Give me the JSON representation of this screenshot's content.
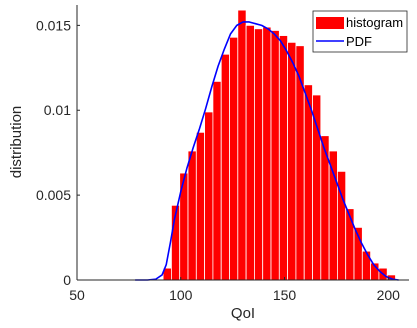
{
  "chart_data": {
    "type": "bar",
    "xlabel": "QoI",
    "ylabel": "distribution",
    "xlim": [
      50,
      210
    ],
    "ylim": [
      0,
      0.0162
    ],
    "x_ticks": [
      50,
      100,
      150,
      200
    ],
    "y_ticks": [
      0,
      0.005,
      0.01,
      0.015
    ],
    "x_tick_labels": [
      "50",
      "100",
      "150",
      "200"
    ],
    "y_tick_labels": [
      "0",
      "0.005",
      "0.01",
      "0.015"
    ],
    "grid": false,
    "legend": {
      "placement": "top-right",
      "entries": [
        "histogram",
        "PDF"
      ]
    },
    "series": [
      {
        "name": "histogram",
        "kind": "histogram",
        "color": "#ff0000",
        "bins": [
          {
            "x0": 91.5,
            "x1": 95.5,
            "value": 0.0007
          },
          {
            "x0": 95.5,
            "x1": 99.5,
            "value": 0.0044
          },
          {
            "x0": 99.5,
            "x1": 103.5,
            "value": 0.0063
          },
          {
            "x0": 103.5,
            "x1": 107.5,
            "value": 0.0076
          },
          {
            "x0": 107.5,
            "x1": 111.5,
            "value": 0.0087
          },
          {
            "x0": 111.5,
            "x1": 115.5,
            "value": 0.0099
          },
          {
            "x0": 115.5,
            "x1": 119.5,
            "value": 0.0117
          },
          {
            "x0": 119.5,
            "x1": 123.5,
            "value": 0.0133
          },
          {
            "x0": 123.5,
            "x1": 127.5,
            "value": 0.0143
          },
          {
            "x0": 127.5,
            "x1": 131.5,
            "value": 0.0159
          },
          {
            "x0": 131.5,
            "x1": 135.5,
            "value": 0.015
          },
          {
            "x0": 135.5,
            "x1": 139.5,
            "value": 0.0148
          },
          {
            "x0": 139.5,
            "x1": 143.5,
            "value": 0.0149
          },
          {
            "x0": 143.5,
            "x1": 147.5,
            "value": 0.0147
          },
          {
            "x0": 147.5,
            "x1": 151.5,
            "value": 0.0144
          },
          {
            "x0": 151.5,
            "x1": 155.5,
            "value": 0.014
          },
          {
            "x0": 155.5,
            "x1": 159.5,
            "value": 0.0138
          },
          {
            "x0": 159.5,
            "x1": 163.5,
            "value": 0.0115
          },
          {
            "x0": 163.5,
            "x1": 167.5,
            "value": 0.0109
          },
          {
            "x0": 167.5,
            "x1": 171.5,
            "value": 0.0085
          },
          {
            "x0": 171.5,
            "x1": 175.5,
            "value": 0.0076
          },
          {
            "x0": 175.5,
            "x1": 179.5,
            "value": 0.0064
          },
          {
            "x0": 179.5,
            "x1": 183.5,
            "value": 0.0042
          },
          {
            "x0": 183.5,
            "x1": 187.5,
            "value": 0.0031
          },
          {
            "x0": 187.5,
            "x1": 191.5,
            "value": 0.0017
          },
          {
            "x0": 191.5,
            "x1": 195.5,
            "value": 0.001
          },
          {
            "x0": 195.5,
            "x1": 199.5,
            "value": 0.0007
          },
          {
            "x0": 199.5,
            "x1": 203.5,
            "value": 0.0003
          }
        ]
      },
      {
        "name": "PDF",
        "kind": "line",
        "color": "#0000ff",
        "x": [
          78,
          84,
          88,
          91,
          93,
          95,
          97,
          100,
          103,
          106,
          109,
          112,
          115,
          118,
          121,
          124,
          127,
          130,
          133,
          136,
          139,
          142,
          145,
          148,
          151,
          154,
          157,
          160,
          163,
          166,
          169,
          172,
          175,
          178,
          181,
          184,
          187,
          190,
          193,
          196,
          199,
          202,
          205
        ],
        "y": [
          0,
          0,
          5e-05,
          0.0003,
          0.0009,
          0.0022,
          0.0036,
          0.0052,
          0.0066,
          0.0078,
          0.0089,
          0.0101,
          0.0114,
          0.0126,
          0.0136,
          0.0145,
          0.015,
          0.0152,
          0.0152,
          0.0151,
          0.015,
          0.0148,
          0.0145,
          0.0141,
          0.0135,
          0.0128,
          0.012,
          0.011,
          0.01,
          0.0089,
          0.0078,
          0.0068,
          0.0058,
          0.0048,
          0.0039,
          0.003,
          0.0022,
          0.0015,
          0.0009,
          0.0005,
          0.0002,
          5e-05,
          0
        ]
      }
    ]
  }
}
